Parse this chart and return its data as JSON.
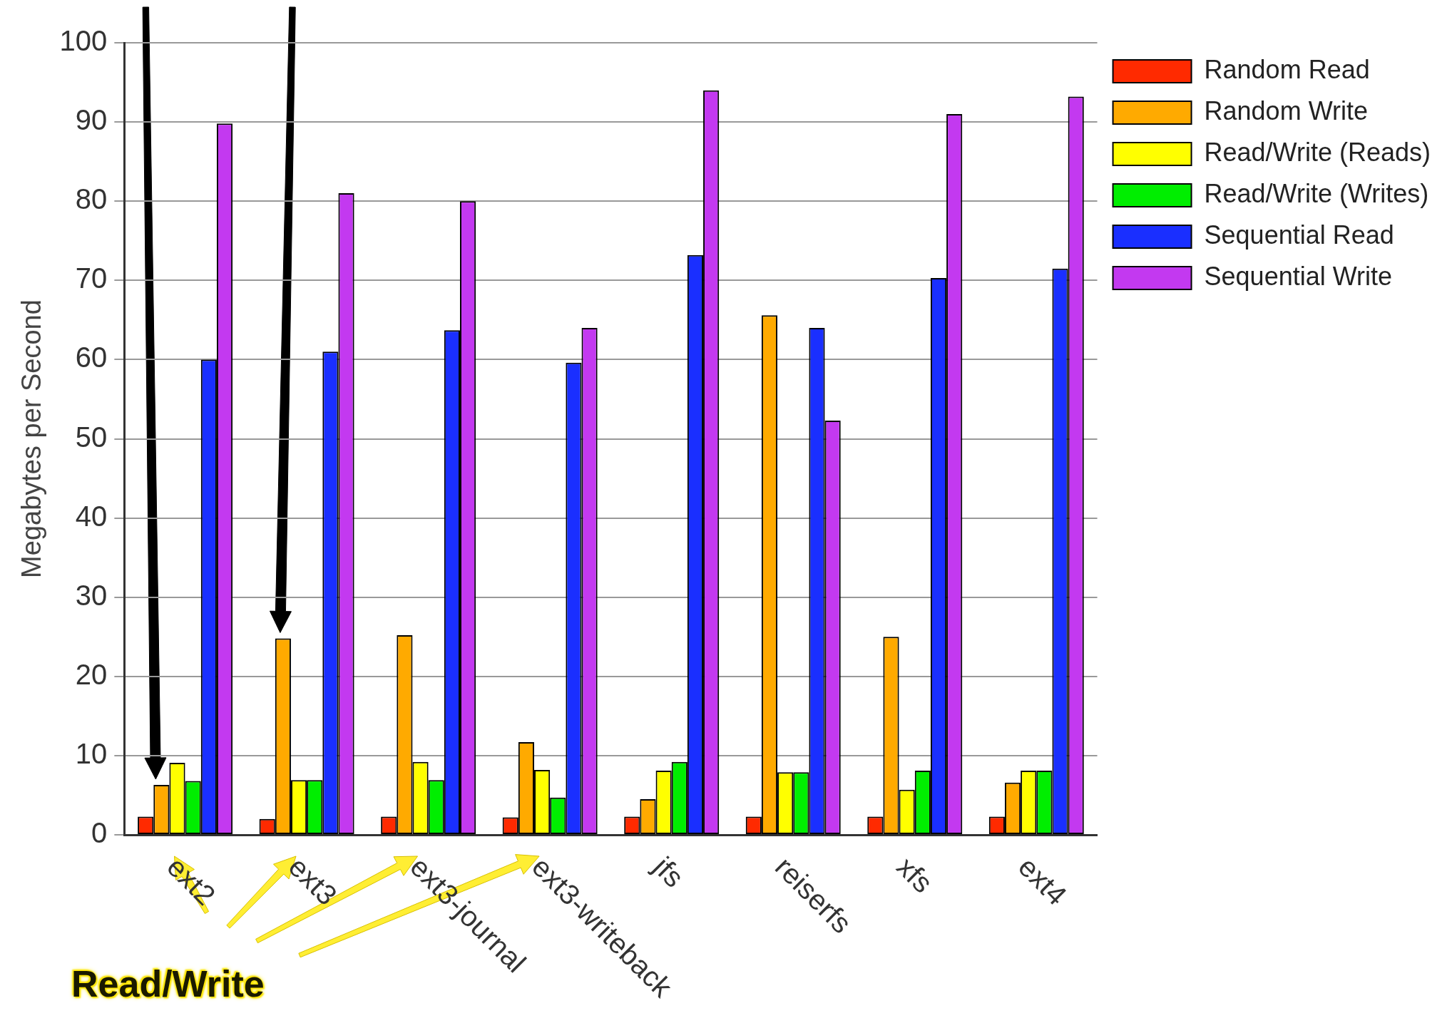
{
  "chart_data": {
    "type": "bar",
    "ylabel": "Megabytes per Second",
    "categories": [
      "ext2",
      "ext3",
      "ext3-journal",
      "ext3-writeback",
      "jfs",
      "reiserfs",
      "xfs",
      "ext4"
    ],
    "series": [
      {
        "name": "Random Read",
        "color": "#ff2a00",
        "values": [
          2.3,
          2.0,
          2.3,
          2.2,
          2.3,
          2.3,
          2.3,
          2.3
        ]
      },
      {
        "name": "Random Write",
        "color": "#ffaa00",
        "values": [
          6.3,
          24.8,
          25.2,
          11.7,
          4.5,
          65.6,
          25.0,
          6.6
        ]
      },
      {
        "name": "Read/Write (Reads)",
        "color": "#ffff00",
        "values": [
          9.1,
          6.9,
          9.2,
          8.2,
          8.1,
          7.9,
          5.7,
          8.1
        ]
      },
      {
        "name": "Read/Write (Writes)",
        "color": "#00ee00",
        "values": [
          6.8,
          6.9,
          6.9,
          4.7,
          9.2,
          7.9,
          8.1,
          8.1
        ]
      },
      {
        "name": "Sequential Read",
        "color": "#1a2fff",
        "values": [
          60.0,
          61.0,
          63.7,
          59.6,
          73.2,
          64.0,
          70.3,
          71.5
        ]
      },
      {
        "name": "Sequential Write",
        "color": "#c339f0",
        "values": [
          89.8,
          81.0,
          80.0,
          64.0,
          94.0,
          52.3,
          91.0,
          93.2
        ]
      }
    ],
    "ylim": [
      0,
      100
    ],
    "yticks": [
      0,
      10,
      20,
      30,
      40,
      50,
      60,
      70,
      80,
      90,
      100
    ],
    "grid": "y",
    "legend": "right",
    "annotations": [
      "Read/Write"
    ]
  }
}
